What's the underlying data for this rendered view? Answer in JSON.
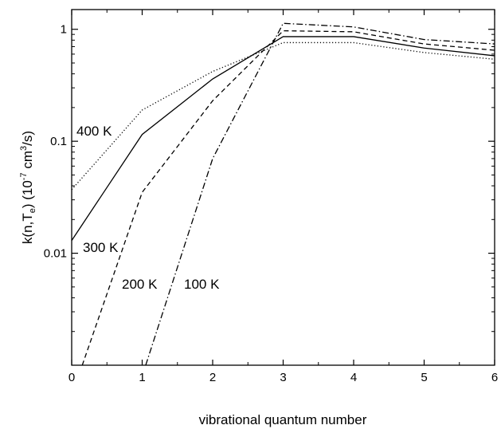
{
  "chart_data": {
    "type": "line",
    "xlabel": "vibrational quantum number",
    "ylabel": {
      "main": "k(n,T",
      "sub": "e",
      "rest": ") (10",
      "exp": "-7",
      "unit1": " cm",
      "unit_exp": "3",
      "unit2": "/s)"
    },
    "xlim": [
      0,
      6
    ],
    "ylim": [
      0.001,
      1.5
    ],
    "yscale": "log",
    "grid": false,
    "x_ticks": [
      "0",
      "1",
      "2",
      "3",
      "4",
      "5",
      "6"
    ],
    "y_ticks": [
      {
        "value": 0.01,
        "label": "0.01"
      },
      {
        "value": 0.1,
        "label": "0.1"
      },
      {
        "value": 1,
        "label": "1"
      }
    ],
    "series": [
      {
        "name": "400 K",
        "style": "dotted",
        "x": [
          0,
          1,
          2,
          3,
          4,
          5,
          6
        ],
        "y": [
          0.037,
          0.19,
          0.42,
          0.76,
          0.76,
          0.62,
          0.54
        ]
      },
      {
        "name": "300 K",
        "style": "solid",
        "x": [
          0,
          1,
          2,
          3,
          4,
          5,
          6
        ],
        "y": [
          0.013,
          0.115,
          0.36,
          0.86,
          0.86,
          0.68,
          0.58
        ]
      },
      {
        "name": "200 K",
        "style": "dashed",
        "x": [
          0.15,
          1,
          2,
          3,
          4,
          5,
          6
        ],
        "y": [
          0.001,
          0.035,
          0.23,
          0.97,
          0.95,
          0.74,
          0.65
        ]
      },
      {
        "name": "100 K",
        "style": "dashdot",
        "x": [
          1.05,
          2,
          3,
          4,
          5,
          6
        ],
        "y": [
          0.001,
          0.07,
          1.13,
          1.05,
          0.81,
          0.74
        ]
      }
    ]
  }
}
